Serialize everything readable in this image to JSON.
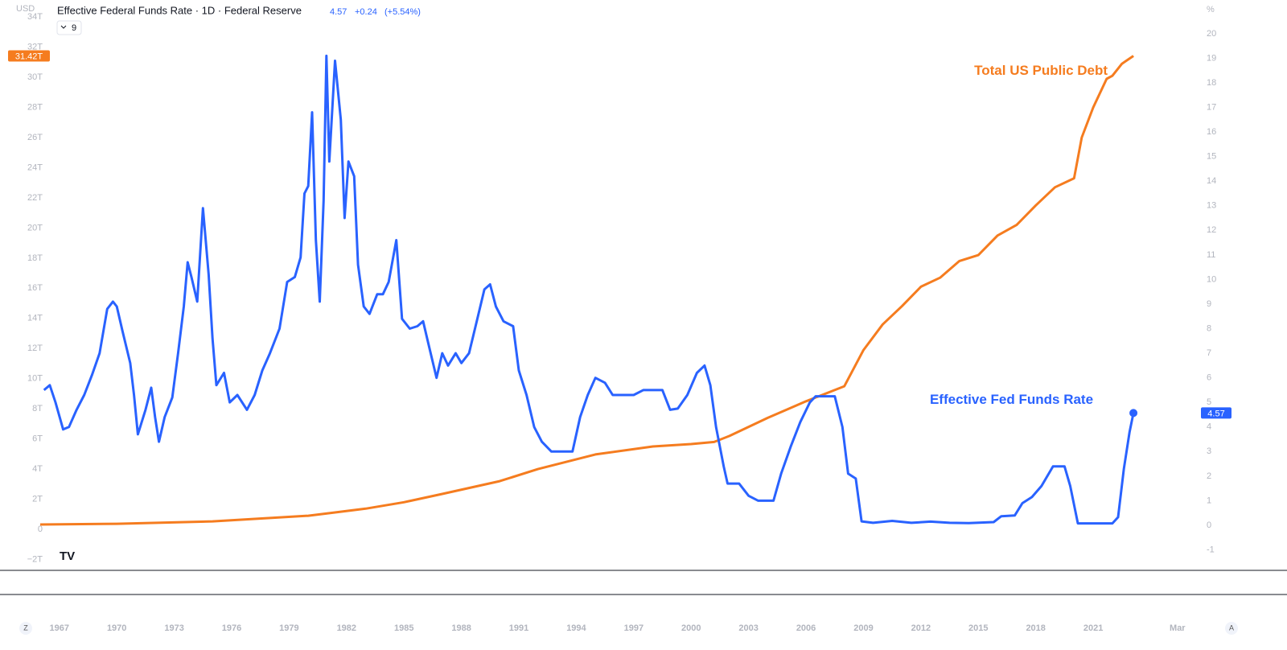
{
  "header": {
    "currency": "USD",
    "title": "Effective Federal Funds Rate · 1D · Federal Reserve",
    "last": "4.57",
    "change": "+0.24",
    "change_pct": "(+5.54%)",
    "indicator_count": "9"
  },
  "buttons": {
    "left": "Z",
    "right": "A"
  },
  "chart_data": {
    "type": "line",
    "xlim": [
      1963.9,
      2026.5
    ],
    "xticks": [
      1967,
      1970,
      1973,
      1976,
      1979,
      1982,
      1985,
      1988,
      1991,
      1994,
      1997,
      2000,
      2003,
      2006,
      2009,
      2012,
      2015,
      2018,
      2021,
      {
        "value": 2025.4,
        "label": "Mar"
      }
    ],
    "ylim": [
      -2.67,
      35.13
    ],
    "yticks": [
      {
        "value": -2,
        "label": "−2T"
      },
      0,
      {
        "value": 2,
        "label": "2T"
      },
      {
        "value": 4,
        "label": "4T"
      },
      {
        "value": 6,
        "label": "6T"
      },
      {
        "value": 8,
        "label": "8T"
      },
      {
        "value": 10,
        "label": "10T"
      },
      {
        "value": 12,
        "label": "12T"
      },
      {
        "value": 14,
        "label": "14T"
      },
      {
        "value": 16,
        "label": "16T"
      },
      {
        "value": 18,
        "label": "18T"
      },
      {
        "value": 20,
        "label": "20T"
      },
      {
        "value": 22,
        "label": "22T"
      },
      {
        "value": 24,
        "label": "24T"
      },
      {
        "value": 26,
        "label": "26T"
      },
      {
        "value": 28,
        "label": "28T"
      },
      {
        "value": 30,
        "label": "30T"
      },
      {
        "value": 32,
        "label": "32T"
      },
      {
        "value": 34,
        "label": "34T"
      }
    ],
    "y2lim": [
      -1.8,
      21.37
    ],
    "y2ticks": [
      -1,
      0,
      1,
      2,
      3,
      4,
      5,
      6,
      7,
      8,
      9,
      10,
      11,
      12,
      13,
      14,
      15,
      16,
      17,
      18,
      19,
      20
    ],
    "y2label": "%",
    "series": [
      {
        "name": "Total US Public Debt",
        "color": "#f57c1f",
        "axis": "y",
        "last_value_label": "31.42T",
        "x": [
          1966,
          1970,
          1975,
          1980,
          1983,
          1985,
          1987,
          1990,
          1992,
          1995,
          1998,
          2000,
          2001.2,
          2002,
          2004,
          2006,
          2008,
          2009,
          2010,
          2011,
          2012,
          2013,
          2014,
          2015,
          2016,
          2017,
          2018,
          2019,
          2020,
          2020.4,
          2021,
          2021.7,
          2022,
          2022.5,
          2023.1
        ],
        "values": [
          0.32,
          0.37,
          0.53,
          0.9,
          1.37,
          1.8,
          2.35,
          3.2,
          4.0,
          4.97,
          5.5,
          5.66,
          5.8,
          6.2,
          7.4,
          8.5,
          9.5,
          11.9,
          13.6,
          14.8,
          16.1,
          16.7,
          17.8,
          18.2,
          19.5,
          20.2,
          21.5,
          22.7,
          23.3,
          26.0,
          28.0,
          29.9,
          30.1,
          30.9,
          31.42
        ]
      },
      {
        "name": "Effective Fed Funds Rate",
        "color": "#2962ff",
        "axis": "y2",
        "last_value_label": "4.57",
        "x": [
          1966.2,
          1966.5,
          1966.8,
          1967.2,
          1967.5,
          1967.9,
          1968.3,
          1968.7,
          1969.1,
          1969.5,
          1969.8,
          1970.0,
          1970.3,
          1970.7,
          1970.9,
          1971.1,
          1971.5,
          1971.8,
          1972.0,
          1972.2,
          1972.5,
          1972.9,
          1973.2,
          1973.5,
          1973.7,
          1973.9,
          1974.2,
          1974.5,
          1974.8,
          1975.0,
          1975.2,
          1975.6,
          1975.9,
          1976.3,
          1976.8,
          1977.2,
          1977.6,
          1978.0,
          1978.5,
          1978.9,
          1979.3,
          1979.6,
          1979.8,
          1980.0,
          1980.2,
          1980.4,
          1980.6,
          1980.8,
          1980.95,
          1981.1,
          1981.4,
          1981.7,
          1981.9,
          1982.1,
          1982.4,
          1982.6,
          1982.9,
          1983.2,
          1983.6,
          1983.9,
          1984.2,
          1984.6,
          1984.9,
          1985.3,
          1985.7,
          1986.0,
          1986.3,
          1986.7,
          1987.0,
          1987.3,
          1987.7,
          1988.0,
          1988.4,
          1988.8,
          1989.2,
          1989.5,
          1989.8,
          1990.2,
          1990.7,
          1991.0,
          1991.4,
          1991.8,
          1992.2,
          1992.7,
          1993.3,
          1993.8,
          1994.2,
          1994.6,
          1995.0,
          1995.5,
          1995.9,
          1996.5,
          1997.0,
          1997.5,
          1998.0,
          1998.5,
          1998.9,
          1999.3,
          1999.8,
          2000.3,
          2000.7,
          2001.0,
          2001.3,
          2001.7,
          2001.9,
          2002.5,
          2003.0,
          2003.5,
          2004.3,
          2004.7,
          2005.2,
          2005.7,
          2006.2,
          2006.5,
          2007.5,
          2007.9,
          2008.2,
          2008.6,
          2008.9,
          2009.5,
          2010.5,
          2011.5,
          2012.5,
          2013.5,
          2014.5,
          2015.8,
          2016.2,
          2016.9,
          2017.3,
          2017.8,
          2018.3,
          2018.9,
          2019.5,
          2019.8,
          2020.2,
          2021.0,
          2022.0,
          2022.3,
          2022.6,
          2022.9,
          2023.1
        ],
        "values": [
          5.5,
          5.7,
          5.0,
          3.9,
          4.0,
          4.7,
          5.3,
          6.1,
          7.0,
          8.8,
          9.1,
          8.9,
          7.9,
          6.6,
          5.3,
          3.7,
          4.7,
          5.6,
          4.4,
          3.4,
          4.4,
          5.2,
          7.0,
          8.9,
          10.7,
          10.1,
          9.1,
          12.9,
          10.2,
          7.6,
          5.7,
          6.2,
          5.0,
          5.3,
          4.7,
          5.3,
          6.3,
          7.0,
          8.0,
          9.9,
          10.1,
          10.9,
          13.5,
          13.8,
          16.8,
          11.6,
          9.1,
          13.2,
          19.1,
          14.8,
          18.9,
          16.5,
          12.5,
          14.8,
          14.2,
          10.6,
          8.9,
          8.6,
          9.4,
          9.4,
          9.9,
          11.6,
          8.4,
          8.0,
          8.1,
          8.3,
          7.3,
          6.0,
          7.0,
          6.5,
          7.0,
          6.6,
          7.0,
          8.3,
          9.6,
          9.8,
          8.9,
          8.3,
          8.1,
          6.3,
          5.3,
          4.0,
          3.4,
          3.0,
          3.0,
          3.0,
          4.4,
          5.3,
          6.0,
          5.8,
          5.3,
          5.3,
          5.3,
          5.5,
          5.5,
          5.5,
          4.7,
          4.75,
          5.3,
          6.2,
          6.5,
          5.7,
          4.0,
          2.4,
          1.7,
          1.7,
          1.2,
          1.0,
          1.0,
          2.1,
          3.2,
          4.2,
          5.0,
          5.25,
          5.25,
          4.0,
          2.1,
          1.9,
          0.16,
          0.1,
          0.18,
          0.1,
          0.15,
          0.1,
          0.09,
          0.13,
          0.37,
          0.4,
          0.9,
          1.15,
          1.6,
          2.4,
          2.4,
          1.6,
          0.08,
          0.08,
          0.08,
          0.33,
          2.3,
          3.8,
          4.57
        ]
      }
    ]
  }
}
